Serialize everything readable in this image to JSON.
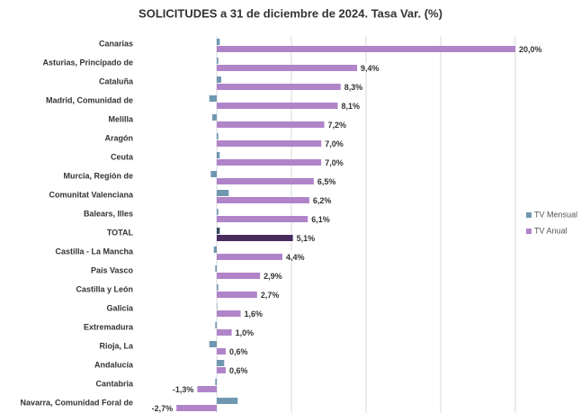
{
  "chart_data": {
    "type": "hbar",
    "title": "SOLICITUDES a 31 de diciembre de 2024. Tasa Var. (%)",
    "categories": [
      "Canarias",
      "Asturias, Principado de",
      "Cataluña",
      "Madrid, Comunidad de",
      "Melilla",
      "Aragón",
      "Ceuta",
      "Murcia, Región de",
      "Comunitat Valenciana",
      "Balears, Illes",
      "TOTAL",
      "Castilla - La Mancha",
      "País Vasco",
      "Castilla y León",
      "Galicia",
      "Extremadura",
      "Rioja, La",
      "Andalucía",
      "Cantabria",
      "Navarra, Comunidad Foral de"
    ],
    "series": [
      {
        "name": "TV Mensual",
        "color": "#6f97b0",
        "highlight_color": "#2f4b5f",
        "values": [
          0.2,
          0.1,
          0.3,
          -0.5,
          -0.3,
          0.1,
          0.2,
          -0.4,
          0.8,
          0.1,
          0.2,
          -0.2,
          -0.1,
          0.1,
          0.0,
          -0.1,
          -0.5,
          0.5,
          -0.1,
          1.4
        ]
      },
      {
        "name": "TV Anual",
        "color": "#b084c9",
        "highlight_color": "#4a2c5f",
        "values": [
          20.0,
          9.4,
          8.3,
          8.1,
          7.2,
          7.0,
          7.0,
          6.5,
          6.2,
          6.1,
          5.1,
          4.4,
          2.9,
          2.7,
          1.6,
          1.0,
          0.6,
          0.6,
          -1.3,
          -2.7
        ],
        "value_labels": [
          "20,0%",
          "9,4%",
          "8,3%",
          "8,1%",
          "7,2%",
          "7,0%",
          "7,0%",
          "6,5%",
          "6,2%",
          "6,1%",
          "5,1%",
          "4,4%",
          "2,9%",
          "2,7%",
          "1,6%",
          "1,0%",
          "0,6%",
          "0,6%",
          "-1,3%",
          "-2,7%"
        ]
      }
    ],
    "highlight_index": 10,
    "xlim": [
      -5,
      20
    ],
    "xticks": [
      0,
      5,
      10,
      15,
      20
    ],
    "grid": true,
    "legend": "right"
  }
}
